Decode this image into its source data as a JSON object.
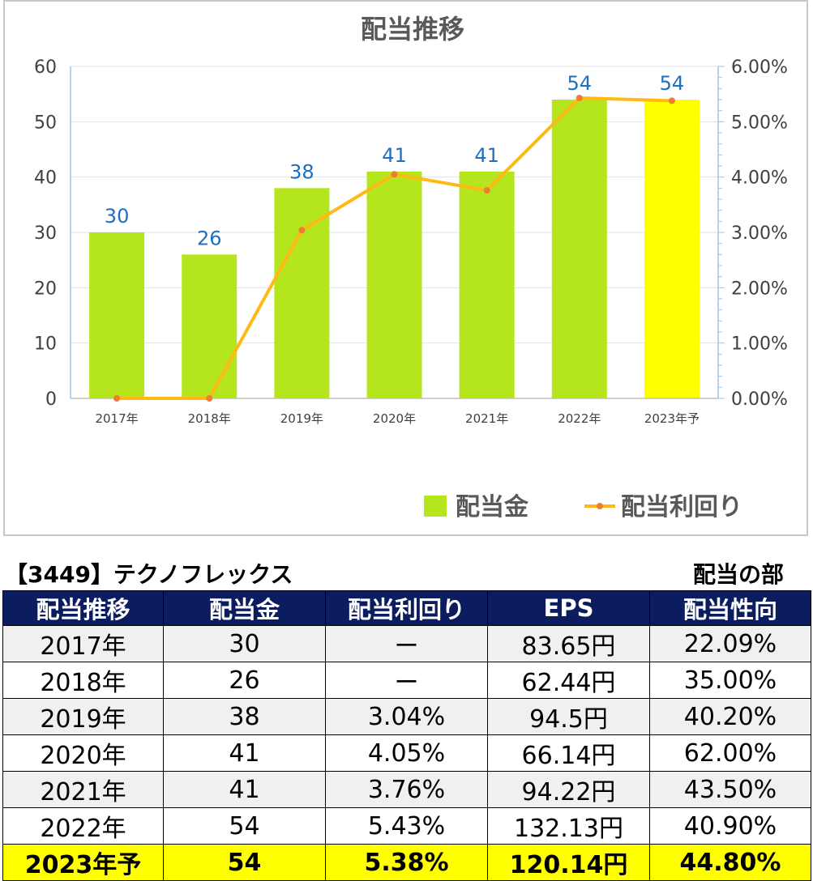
{
  "chart_data": {
    "type": "bar+line",
    "title": "配当推移",
    "categories": [
      "2017年",
      "2018年",
      "2019年",
      "2020年",
      "2021年",
      "2022年",
      "2023年予"
    ],
    "series": [
      {
        "name": "配当金",
        "kind": "bar",
        "axis": "left",
        "values": [
          30,
          26,
          38,
          41,
          41,
          54,
          54
        ],
        "color": "#b5e61d",
        "highlight_color": "#ffff00",
        "highlight_index": 6
      },
      {
        "name": "配当利回り",
        "kind": "line",
        "axis": "right",
        "values": [
          0,
          0,
          3.04,
          4.05,
          3.76,
          5.43,
          5.38
        ],
        "color": "#ffb914",
        "marker_color": "#ed7d31"
      }
    ],
    "data_labels": [
      "30",
      "26",
      "38",
      "41",
      "41",
      "54",
      "54"
    ],
    "data_label_color": "#1f6fbf",
    "y_left": {
      "range": [
        0,
        60
      ],
      "ticks": [
        "0",
        "10",
        "20",
        "30",
        "40",
        "50",
        "60"
      ]
    },
    "y_right": {
      "range": [
        0,
        6
      ],
      "ticks": [
        "0.00%",
        "1.00%",
        "2.00%",
        "3.00%",
        "4.00%",
        "5.00%",
        "6.00%"
      ]
    },
    "grid": true,
    "legend_position": "bottom-right"
  },
  "heading": {
    "company": "【3449】テクノフレックス",
    "section": "配当の部"
  },
  "table": {
    "headers": [
      "配当推移",
      "配当金",
      "配当利回り",
      "EPS",
      "配当性向"
    ],
    "rows": [
      [
        "2017年",
        "30",
        "ー",
        "83.65円",
        "22.09%"
      ],
      [
        "2018年",
        "26",
        "ー",
        "62.44円",
        "35.00%"
      ],
      [
        "2019年",
        "38",
        "3.04%",
        "94.5円",
        "40.20%"
      ],
      [
        "2020年",
        "41",
        "4.05%",
        "66.14円",
        "62.00%"
      ],
      [
        "2021年",
        "41",
        "3.76%",
        "94.22円",
        "43.50%"
      ],
      [
        "2022年",
        "54",
        "5.43%",
        "132.13円",
        "40.90%"
      ],
      [
        "2023年予",
        "54",
        "5.38%",
        "120.14円",
        "44.80%"
      ]
    ],
    "header_bg": "#0b1d5e",
    "highlight_bg": "#ffff00"
  }
}
